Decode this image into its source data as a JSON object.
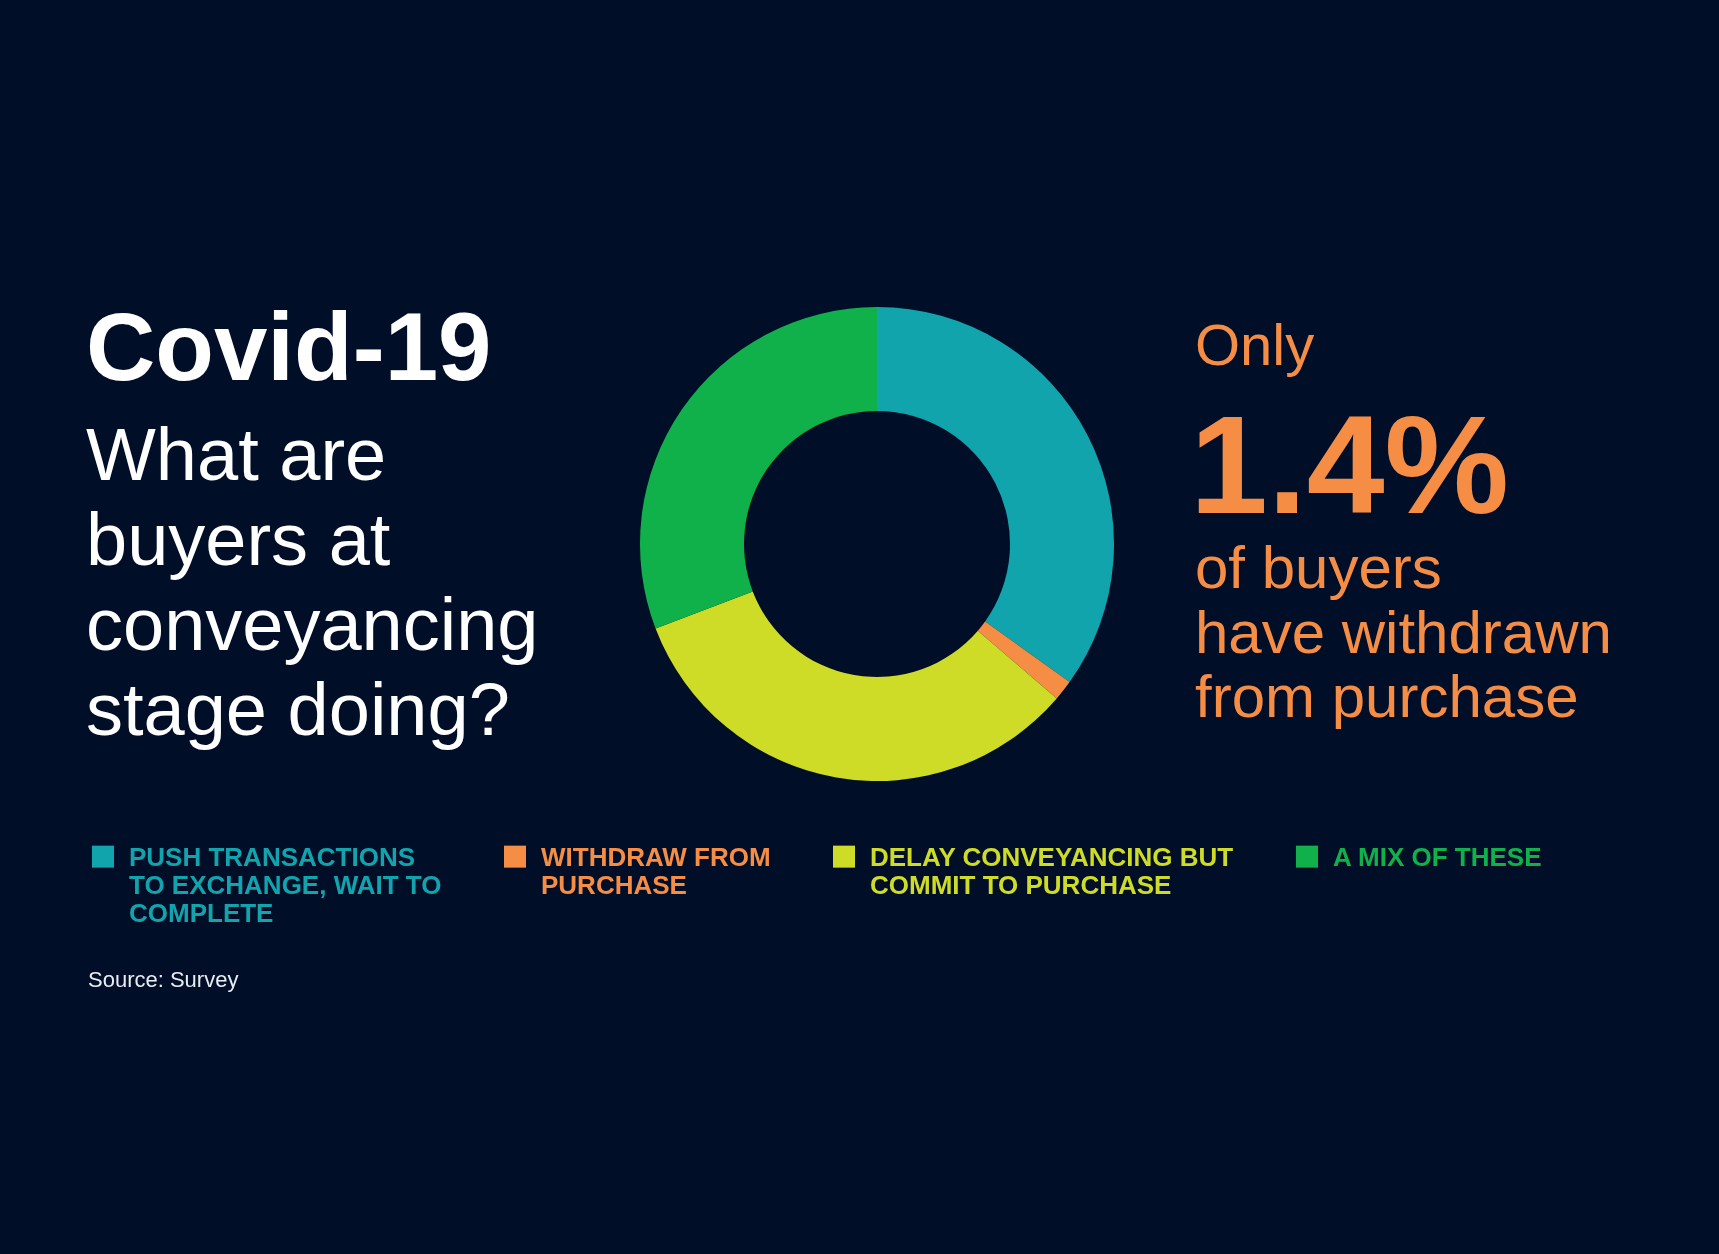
{
  "chart_data": {
    "type": "donut",
    "title": "Covid-19",
    "subtitle": "What are buyers at conveyancing stage doing?",
    "categories": [
      "PUSH TRANSACTIONS TO EXCHANGE, WAIT TO COMPLETE",
      "WITHDRAW FROM PURCHASE",
      "DELAY CONVEYANCING BUT COMMIT TO PURCHASE",
      "A MIX OF THESE"
    ],
    "values": [
      34.9,
      1.4,
      32.9,
      30.8
    ],
    "colors": [
      "#12a4ad",
      "#f68d45",
      "#cfdc27",
      "#10b14b"
    ],
    "legend": "bottom",
    "annotations": [
      "Only",
      "1.4%",
      "of buyers",
      "have withdrawn",
      "from purchase",
      "Source: Survey"
    ]
  }
}
